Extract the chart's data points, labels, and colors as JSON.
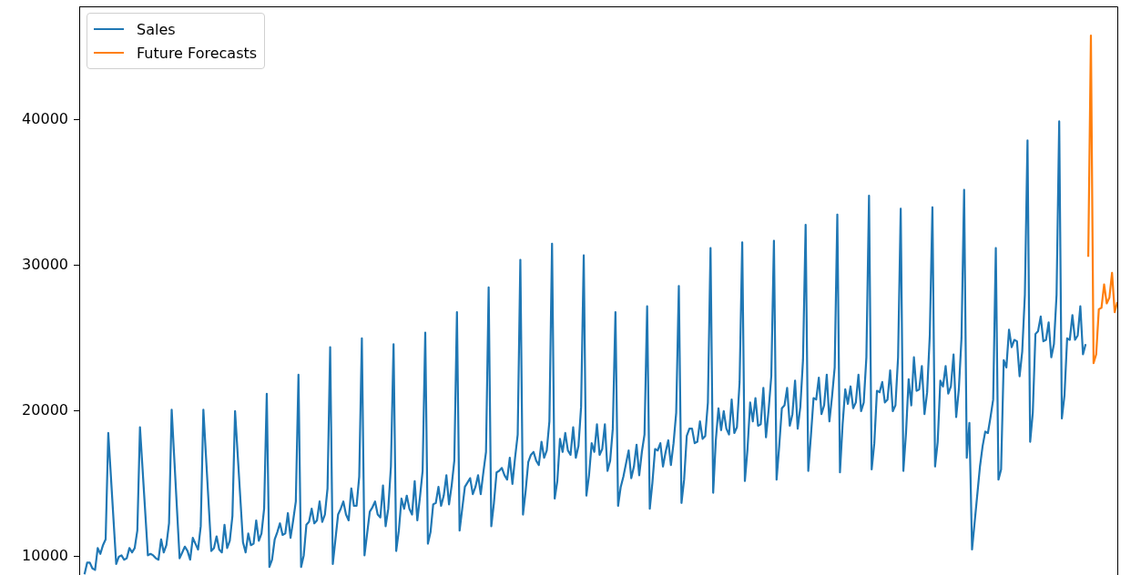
{
  "chart_data": {
    "type": "line",
    "categories": [
      null,
      null,
      null,
      null,
      null,
      null,
      null,
      null,
      null,
      null,
      null,
      null,
      null,
      null,
      null,
      null,
      null,
      null,
      null,
      null,
      null,
      null,
      null,
      null,
      null,
      null,
      null,
      null,
      null,
      null,
      null,
      null,
      null,
      null,
      null,
      null,
      null,
      null,
      null,
      null,
      null,
      null,
      null,
      null,
      null,
      null,
      null,
      null,
      null,
      null,
      null,
      null,
      null,
      null,
      null,
      null,
      null,
      null,
      null,
      null,
      null,
      null,
      null,
      null,
      null,
      null,
      null,
      null,
      null,
      null,
      null,
      null,
      null,
      null,
      null,
      null,
      null,
      null,
      null,
      null,
      null,
      null,
      null,
      null,
      null,
      null,
      null,
      null,
      null,
      null,
      null,
      null,
      null,
      null,
      null,
      null,
      null,
      null,
      null,
      null,
      null,
      null,
      null,
      null,
      null,
      null,
      null,
      null,
      null,
      null,
      null,
      null,
      null,
      null,
      null,
      null,
      null,
      null,
      null,
      null,
      null,
      null,
      null,
      null,
      null,
      null,
      null,
      null,
      null,
      null,
      null,
      null,
      null,
      null,
      null,
      null,
      null,
      null,
      null,
      null,
      null,
      null,
      null,
      null,
      null,
      null,
      null,
      null,
      null,
      null,
      null,
      null,
      null,
      null,
      null,
      null,
      null,
      null,
      null,
      null,
      null,
      null,
      null,
      null,
      null,
      null,
      null,
      null,
      null,
      null,
      null,
      null,
      null,
      null,
      null,
      null,
      null,
      null,
      null,
      null,
      null,
      null,
      null,
      null,
      null,
      null,
      null,
      null,
      null,
      null,
      null,
      null,
      null,
      null,
      null,
      null,
      null,
      null,
      null,
      null,
      null,
      null,
      null,
      null,
      null,
      null,
      null,
      null,
      null,
      null,
      null,
      null,
      null,
      null,
      null,
      null,
      null,
      null,
      null,
      null,
      null,
      null,
      null,
      null,
      null,
      null,
      null,
      null,
      null,
      null,
      null,
      null,
      null,
      null,
      null,
      null,
      null,
      null,
      null,
      null,
      null,
      null,
      null,
      null,
      null,
      null,
      null,
      null,
      null,
      null,
      null,
      null,
      null,
      null,
      null,
      null,
      null,
      null,
      null,
      null,
      null,
      null,
      null,
      null,
      null,
      null,
      null,
      null,
      null,
      null,
      null,
      null,
      null,
      null,
      null,
      null,
      null,
      null,
      null,
      null,
      null,
      null,
      null,
      null,
      null,
      null,
      null,
      null,
      null,
      null,
      null,
      null,
      null,
      null,
      null,
      null,
      null,
      null,
      null,
      null,
      null,
      null,
      null,
      null,
      null,
      null,
      null,
      null,
      null,
      null,
      null,
      null,
      null,
      null,
      null,
      null,
      null,
      null,
      null,
      null,
      null,
      null,
      null,
      null,
      null,
      null,
      null,
      null,
      null,
      null,
      null,
      null,
      null,
      null,
      null,
      null,
      null,
      null,
      null,
      null,
      null,
      null,
      null,
      null,
      null,
      null,
      null,
      null,
      null,
      null,
      null,
      null,
      null,
      null,
      null,
      null,
      null,
      null,
      null,
      null,
      null,
      null,
      null,
      null,
      null,
      null,
      null,
      null,
      null,
      null,
      null,
      null,
      null,
      null,
      null,
      null,
      null,
      null,
      null,
      null,
      null,
      null,
      null,
      null,
      null,
      null,
      null,
      null,
      null,
      null,
      null,
      null,
      null,
      null
    ],
    "series": [
      {
        "name": "Sales",
        "color": "#1f77b4",
        "values": [
          null,
          null,
          8800,
          9600,
          9600,
          9200,
          9100,
          10600,
          10200,
          10800,
          11200,
          18500,
          null,
          null,
          9500,
          10000,
          10100,
          9800,
          9900,
          10600,
          10300,
          10600,
          11800,
          18900,
          null,
          null,
          10100,
          10200,
          10100,
          9900,
          9800,
          11200,
          10300,
          10800,
          12300,
          20100,
          null,
          null,
          9900,
          10300,
          10700,
          10400,
          9800,
          11300,
          10900,
          10500,
          12100,
          20100,
          null,
          null,
          10400,
          10600,
          11400,
          10500,
          10300,
          12200,
          10600,
          11100,
          12800,
          20000,
          null,
          null,
          11000,
          10300,
          11600,
          10800,
          10900,
          12500,
          11100,
          11600,
          13300,
          21200,
          9300,
          9800,
          11200,
          11700,
          12300,
          11500,
          11600,
          13000,
          11300,
          12500,
          13800,
          22500,
          9300,
          10100,
          12200,
          12400,
          13300,
          12300,
          12500,
          13800,
          12400,
          12900,
          14700,
          24400,
          9500,
          11200,
          12900,
          13300,
          13800,
          12900,
          12500,
          14700,
          13500,
          13500,
          15500,
          25000,
          10100,
          11600,
          13100,
          13400,
          13800,
          12900,
          12700,
          14900,
          12100,
          13300,
          16200,
          24600,
          10400,
          11800,
          14000,
          13300,
          14200,
          13300,
          12900,
          15200,
          12500,
          14100,
          15900,
          25400,
          10900,
          11700,
          13600,
          13700,
          14800,
          13500,
          14200,
          15600,
          13600,
          14900,
          16600,
          26800,
          11800,
          13300,
          14800,
          15100,
          15400,
          14300,
          14800,
          15600,
          14300,
          15800,
          17200,
          28500,
          12100,
          13700,
          15800,
          15900,
          16100,
          15600,
          15300,
          16800,
          15000,
          16800,
          18400,
          30400,
          12900,
          14500,
          16500,
          17000,
          17200,
          16600,
          16300,
          17900,
          16800,
          17300,
          19300,
          31500,
          14000,
          15200,
          18100,
          17200,
          18500,
          17300,
          17000,
          18900,
          16800,
          17600,
          20300,
          30700,
          14200,
          15600,
          17800,
          17200,
          19100,
          17000,
          17400,
          19100,
          15900,
          16600,
          18800,
          26800,
          13500,
          14800,
          15500,
          16400,
          17300,
          15400,
          16200,
          17700,
          15600,
          17200,
          18400,
          27200,
          13300,
          15100,
          17400,
          17300,
          17800,
          16200,
          17200,
          18000,
          16300,
          17800,
          19900,
          28600,
          13700,
          15300,
          18300,
          18800,
          18800,
          17800,
          17900,
          19300,
          18100,
          18300,
          20600,
          31200,
          14400,
          18000,
          20200,
          18700,
          20000,
          18800,
          18400,
          20800,
          18500,
          18900,
          22000,
          31600,
          15200,
          17400,
          20600,
          19300,
          20900,
          19000,
          19100,
          21600,
          18200,
          20100,
          22400,
          31700,
          15300,
          17600,
          20200,
          20400,
          21600,
          19000,
          19800,
          22100,
          18800,
          20300,
          23500,
          32800,
          15900,
          18300,
          20900,
          20800,
          22300,
          19800,
          20400,
          22500,
          19300,
          21000,
          23000,
          33500,
          15800,
          19100,
          21500,
          20500,
          21700,
          20200,
          20600,
          22500,
          20000,
          20600,
          23700,
          34800,
          16000,
          17800,
          21400,
          21300,
          22000,
          20600,
          20800,
          22800,
          20000,
          20400,
          23700,
          33900,
          15900,
          18500,
          22200,
          20400,
          23700,
          21400,
          21500,
          23100,
          19800,
          21300,
          25200,
          34000,
          16200,
          17900,
          22100,
          21700,
          23100,
          21200,
          21700,
          23900,
          19600,
          21500,
          25000,
          35200,
          16800,
          19200,
          10500,
          null,
          null,
          16200,
          17600,
          18600,
          18500,
          19600,
          20800,
          31200,
          15300,
          16000,
          23500,
          23000,
          25600,
          24400,
          24900,
          24800,
          22400,
          24100,
          28000,
          38600,
          17900,
          19900,
          25300,
          25500,
          26500,
          24800,
          24900,
          26100,
          23700,
          24600,
          28000,
          39900,
          19500,
          21100,
          25000,
          24900,
          26600,
          24900,
          25200,
          27200,
          23900,
          24600,
          null,
          null,
          null,
          null,
          null,
          null,
          null,
          null,
          null,
          null,
          null,
          null
        ]
      },
      {
        "name": "Future Forecasts",
        "color": "#ff7f0e",
        "values": [
          null,
          null,
          null,
          null,
          null,
          null,
          null,
          null,
          null,
          null,
          null,
          null,
          null,
          null,
          null,
          null,
          null,
          null,
          null,
          null,
          null,
          null,
          null,
          null,
          null,
          null,
          null,
          null,
          null,
          null,
          null,
          null,
          null,
          null,
          null,
          null,
          null,
          null,
          null,
          null,
          null,
          null,
          null,
          null,
          null,
          null,
          null,
          null,
          null,
          null,
          null,
          null,
          null,
          null,
          null,
          null,
          null,
          null,
          null,
          null,
          null,
          null,
          null,
          null,
          null,
          null,
          null,
          null,
          null,
          null,
          null,
          null,
          null,
          null,
          null,
          null,
          null,
          null,
          null,
          null,
          null,
          null,
          null,
          null,
          null,
          null,
          null,
          null,
          null,
          null,
          null,
          null,
          null,
          null,
          null,
          null,
          null,
          null,
          null,
          null,
          null,
          null,
          null,
          null,
          null,
          null,
          null,
          null,
          null,
          null,
          null,
          null,
          null,
          null,
          null,
          null,
          null,
          null,
          null,
          null,
          null,
          null,
          null,
          null,
          null,
          null,
          null,
          null,
          null,
          null,
          null,
          null,
          null,
          null,
          null,
          null,
          null,
          null,
          null,
          null,
          null,
          null,
          null,
          null,
          null,
          null,
          null,
          null,
          null,
          null,
          null,
          null,
          null,
          null,
          null,
          null,
          null,
          null,
          null,
          null,
          null,
          null,
          null,
          null,
          null,
          null,
          null,
          null,
          null,
          null,
          null,
          null,
          null,
          null,
          null,
          null,
          null,
          null,
          null,
          null,
          null,
          null,
          null,
          null,
          null,
          null,
          null,
          null,
          null,
          null,
          null,
          null,
          null,
          null,
          null,
          null,
          null,
          null,
          null,
          null,
          null,
          null,
          null,
          null,
          null,
          null,
          null,
          null,
          null,
          null,
          null,
          null,
          null,
          null,
          null,
          null,
          null,
          null,
          null,
          null,
          null,
          null,
          null,
          null,
          null,
          null,
          null,
          null,
          null,
          null,
          null,
          null,
          null,
          null,
          null,
          null,
          null,
          null,
          null,
          null,
          null,
          null,
          null,
          null,
          null,
          null,
          null,
          null,
          null,
          null,
          null,
          null,
          null,
          null,
          null,
          null,
          null,
          null,
          null,
          null,
          null,
          null,
          null,
          null,
          null,
          null,
          null,
          null,
          null,
          null,
          null,
          null,
          null,
          null,
          null,
          null,
          null,
          null,
          null,
          null,
          null,
          null,
          null,
          null,
          null,
          null,
          null,
          null,
          null,
          null,
          null,
          null,
          null,
          null,
          null,
          null,
          null,
          null,
          null,
          null,
          null,
          null,
          null,
          null,
          null,
          null,
          null,
          null,
          null,
          null,
          null,
          null,
          null,
          null,
          null,
          null,
          null,
          null,
          null,
          null,
          null,
          null,
          null,
          null,
          null,
          null,
          null,
          null,
          null,
          null,
          null,
          null,
          null,
          null,
          null,
          null,
          null,
          null,
          null,
          null,
          null,
          null,
          null,
          null,
          null,
          null,
          null,
          null,
          null,
          null,
          null,
          null,
          null,
          null,
          null,
          null,
          null,
          null,
          null,
          null,
          null,
          null,
          null,
          null,
          null,
          null,
          null,
          null,
          null,
          null,
          null,
          null,
          null,
          null,
          null,
          null,
          null,
          null,
          null,
          null,
          null,
          null,
          30600,
          45800,
          23300,
          23900,
          27000,
          27100,
          28700,
          27400,
          27800,
          29500,
          26800,
          27500
        ]
      }
    ],
    "ylim": [
      8750,
      47800
    ],
    "yticks": [
      10000,
      20000,
      30000,
      40000
    ],
    "legend": "top left",
    "tick_labels": "y"
  }
}
